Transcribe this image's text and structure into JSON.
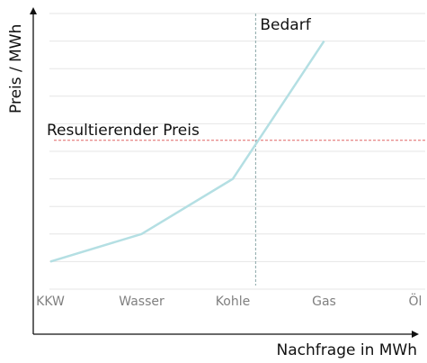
{
  "chart_data": {
    "type": "line",
    "title": "",
    "xlabel": "Nachfrage in MWh",
    "ylabel": "Preis / MWh",
    "categories": [
      "KKW",
      "Wasser",
      "Kohle",
      "Gas",
      "Öl"
    ],
    "series": [
      {
        "values": [
          1,
          2,
          4,
          9,
          null
        ]
      }
    ],
    "ylim": [
      0,
      10
    ],
    "grid": true,
    "annotations": {
      "demand_label": "Bedarf",
      "demand_x": 2.25,
      "price_label": "Resultierender Preis",
      "price_y": 5.4
    },
    "colors": {
      "line": "#b4dfe3",
      "price_line": "#e06666",
      "demand_line": "#8aa6a8",
      "grid": "#e6e6e6",
      "axis": "#111111"
    }
  }
}
